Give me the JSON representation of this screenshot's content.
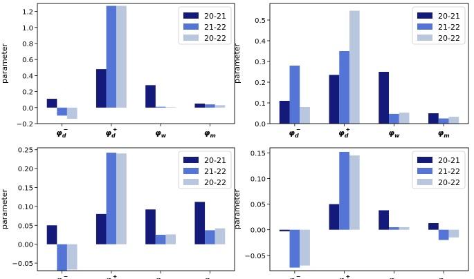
{
  "colors": {
    "20-21": "#131a7a",
    "21-22": "#5575d6",
    "20-22": "#b8c6de"
  },
  "chart_data": [
    {
      "type": "bar",
      "categories": [
        "φd−",
        "φd+",
        "φw",
        "φm"
      ],
      "ylabel": "parameter",
      "ylim": [
        -0.2,
        1.3
      ],
      "yticks": [
        -0.2,
        0.0,
        0.2,
        0.4,
        0.6,
        0.8,
        1.0,
        1.2
      ],
      "ytick_labels": [
        "−0.2",
        "0.0",
        "0.2",
        "0.4",
        "0.6",
        "0.8",
        "1.0",
        "1.2"
      ],
      "legend": "top-right",
      "series": [
        {
          "name": "20-21",
          "values": [
            0.11,
            0.48,
            0.28,
            0.05
          ]
        },
        {
          "name": "21-22",
          "values": [
            -0.1,
            1.27,
            0.01,
            0.04
          ]
        },
        {
          "name": "20-22",
          "values": [
            -0.14,
            1.27,
            0.005,
            0.03
          ]
        }
      ]
    },
    {
      "type": "bar",
      "categories": [
        "φd−",
        "φd+",
        "φw",
        "φm"
      ],
      "ylabel": "parameter",
      "ylim": [
        0.0,
        0.58
      ],
      "yticks": [
        0.0,
        0.1,
        0.2,
        0.3,
        0.4,
        0.5
      ],
      "ytick_labels": [
        "0.0",
        "0.1",
        "0.2",
        "0.3",
        "0.4",
        "0.5"
      ],
      "legend": "top-right",
      "series": [
        {
          "name": "20-21",
          "values": [
            0.11,
            0.235,
            0.25,
            0.05
          ]
        },
        {
          "name": "21-22",
          "values": [
            0.28,
            0.35,
            0.047,
            0.025
          ]
        },
        {
          "name": "20-22",
          "values": [
            0.08,
            0.545,
            0.053,
            0.033
          ]
        }
      ]
    },
    {
      "type": "bar",
      "categories": [
        "φd−",
        "φd+",
        "φw",
        "φm"
      ],
      "ylabel": "parameter",
      "ylim": [
        -0.07,
        0.255
      ],
      "yticks": [
        -0.05,
        0.0,
        0.05,
        0.1,
        0.15,
        0.2,
        0.25
      ],
      "ytick_labels": [
        "−0.05",
        "0.00",
        "0.05",
        "0.10",
        "0.15",
        "0.20",
        "0.25"
      ],
      "legend": "top-right",
      "series": [
        {
          "name": "20-21",
          "values": [
            0.05,
            0.08,
            0.092,
            0.112
          ]
        },
        {
          "name": "21-22",
          "values": [
            -0.07,
            0.242,
            0.025,
            0.037
          ]
        },
        {
          "name": "20-22",
          "values": [
            -0.067,
            0.24,
            0.026,
            0.042
          ]
        }
      ]
    },
    {
      "type": "bar",
      "categories": [
        "φd−",
        "φd+",
        "φw",
        "φm"
      ],
      "ylabel": "parameter",
      "ylim": [
        -0.08,
        0.16
      ],
      "yticks": [
        -0.05,
        0.0,
        0.05,
        0.1,
        0.15
      ],
      "ytick_labels": [
        "−0.05",
        "0.00",
        "0.05",
        "0.10",
        "0.15"
      ],
      "legend": "top-right",
      "series": [
        {
          "name": "20-21",
          "values": [
            -0.003,
            0.05,
            0.038,
            0.013
          ]
        },
        {
          "name": "21-22",
          "values": [
            -0.074,
            0.152,
            0.005,
            -0.02
          ]
        },
        {
          "name": "20-22",
          "values": [
            -0.07,
            0.145,
            0.005,
            -0.015
          ]
        }
      ]
    }
  ]
}
